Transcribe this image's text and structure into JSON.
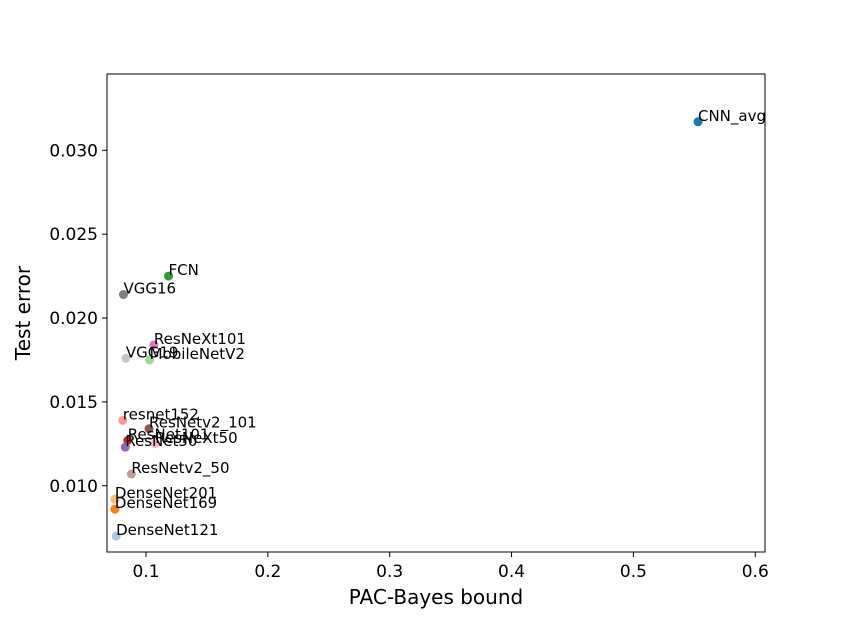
{
  "chart_data": {
    "type": "scatter",
    "title": "",
    "xlabel": "PAC-Bayes bound",
    "ylabel": "Test error",
    "xlim": [
      0.068,
      0.608
    ],
    "ylim": [
      0.00605,
      0.03455
    ],
    "xticks": [
      0.1,
      0.2,
      0.3,
      0.4,
      0.5,
      0.6
    ],
    "xtick_labels": [
      "0.1",
      "0.2",
      "0.3",
      "0.4",
      "0.5",
      "0.6"
    ],
    "yticks": [
      0.01,
      0.015,
      0.02,
      0.025,
      0.03
    ],
    "ytick_labels": [
      "0.010",
      "0.015",
      "0.020",
      "0.025",
      "0.030"
    ],
    "grid": false,
    "legend": "none",
    "points": [
      {
        "label": "CNN_avg",
        "x": 0.553,
        "y": 0.0317,
        "color": "#1f77b4"
      },
      {
        "label": "FCN",
        "x": 0.1185,
        "y": 0.0225,
        "color": "#2ca02c"
      },
      {
        "label": "VGG16",
        "x": 0.0815,
        "y": 0.0214,
        "color": "#7f7f7f"
      },
      {
        "label": "ResNeXt101",
        "x": 0.1065,
        "y": 0.0184,
        "color": "#e377c2"
      },
      {
        "label": "VGG19",
        "x": 0.0835,
        "y": 0.0176,
        "color": "#c7c7c7"
      },
      {
        "label": "MobileNetV2",
        "x": 0.103,
        "y": 0.0175,
        "color": "#98df8a"
      },
      {
        "label": "resnet152",
        "x": 0.081,
        "y": 0.0139,
        "color": "#ff9896"
      },
      {
        "label": "ResNetv2_101",
        "x": 0.1025,
        "y": 0.0134,
        "color": "#8c564b"
      },
      {
        "label": "ResNet101",
        "x": 0.085,
        "y": 0.0127,
        "color": "#d62728"
      },
      {
        "label": "ResNeXt50",
        "x": 0.1075,
        "y": 0.0125,
        "color": "#f7b6d2"
      },
      {
        "label": "ResNet50",
        "x": 0.083,
        "y": 0.0123,
        "color": "#9467bd"
      },
      {
        "label": "ResNetv2_50",
        "x": 0.088,
        "y": 0.0107,
        "color": "#c49c94"
      },
      {
        "label": "DenseNet201",
        "x": 0.0745,
        "y": 0.0092,
        "color": "#ffbb78"
      },
      {
        "label": "DenseNet169",
        "x": 0.0745,
        "y": 0.0086,
        "color": "#ff7f0e"
      },
      {
        "label": "DenseNet121",
        "x": 0.0755,
        "y": 0.007,
        "color": "#aec7e8"
      }
    ]
  }
}
